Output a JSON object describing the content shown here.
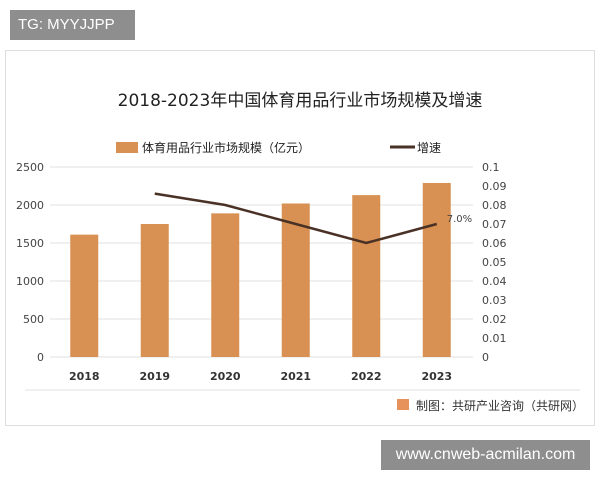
{
  "tg_label": "TG: MYYJJPP",
  "site_label": "www.cnweb-acmilan.com",
  "source": "制图：共研产业咨询（共研网）",
  "colors": {
    "bar": "#d89152",
    "line": "#4a3126"
  },
  "chart_data": {
    "type": "bar+line",
    "title": "2018-2023年中国体育用品行业市场规模及增速",
    "categories": [
      "2018",
      "2019",
      "2020",
      "2021",
      "2022",
      "2023"
    ],
    "series": [
      {
        "name": "体育用品行业市场规模（亿元）",
        "type": "bar",
        "axis": "left",
        "values": [
          1610,
          1750,
          1890,
          2020,
          2130,
          2290
        ]
      },
      {
        "name": "增速",
        "type": "line",
        "axis": "right",
        "values": [
          null,
          0.086,
          0.08,
          0.07,
          0.06,
          0.07
        ]
      }
    ],
    "left_axis": {
      "ylim": [
        0,
        2500
      ],
      "ticks": [
        "0",
        "500",
        "1000",
        "1500",
        "2000",
        "2500"
      ]
    },
    "right_axis": {
      "ylim": [
        0,
        0.1
      ],
      "ticks": [
        "0",
        "0.01",
        "0.02",
        "0.03",
        "0.04",
        "0.05",
        "0.06",
        "0.07",
        "0.08",
        "0.09",
        "0.1"
      ]
    },
    "annotations": [
      {
        "category": "2023",
        "text": "7.0%"
      }
    ],
    "grid": true,
    "legend": "top"
  }
}
